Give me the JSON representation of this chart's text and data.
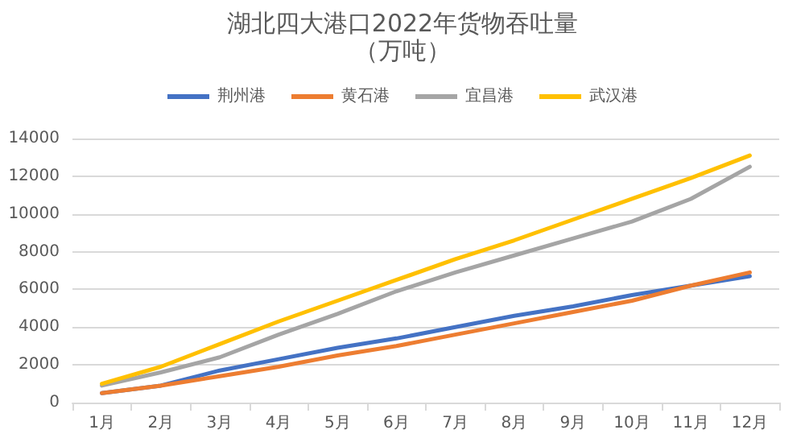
{
  "chart_data": {
    "type": "line",
    "title": "湖北四大港口2022年货物吞吐量",
    "subtitle": "（万吨）",
    "categories": [
      "1月",
      "2月",
      "3月",
      "4月",
      "5月",
      "6月",
      "7月",
      "8月",
      "9月",
      "10月",
      "11月",
      "12月"
    ],
    "series": [
      {
        "name": "荆州港",
        "color": "#4472c4",
        "values": [
          500,
          900,
          1700,
          2300,
          2900,
          3400,
          4000,
          4600,
          5100,
          5700,
          6200,
          6700
        ]
      },
      {
        "name": "黄石港",
        "color": "#ed7d31",
        "values": [
          500,
          900,
          1400,
          1900,
          2500,
          3000,
          3600,
          4200,
          4800,
          5400,
          6200,
          6900
        ]
      },
      {
        "name": "宜昌港",
        "color": "#a5a5a5",
        "values": [
          900,
          1600,
          2400,
          3600,
          4700,
          5900,
          6900,
          7800,
          8700,
          9600,
          10800,
          12500
        ]
      },
      {
        "name": "武汉港",
        "color": "#ffc000",
        "values": [
          1000,
          1900,
          3100,
          4300,
          5400,
          6500,
          7600,
          8600,
          9700,
          10800,
          11900,
          13100
        ]
      }
    ],
    "ylim": [
      0,
      14000
    ],
    "yticks": [
      0,
      2000,
      4000,
      6000,
      8000,
      10000,
      12000,
      14000
    ],
    "grid": "y",
    "legend": "top",
    "marker": "none",
    "line_style": "solid"
  }
}
